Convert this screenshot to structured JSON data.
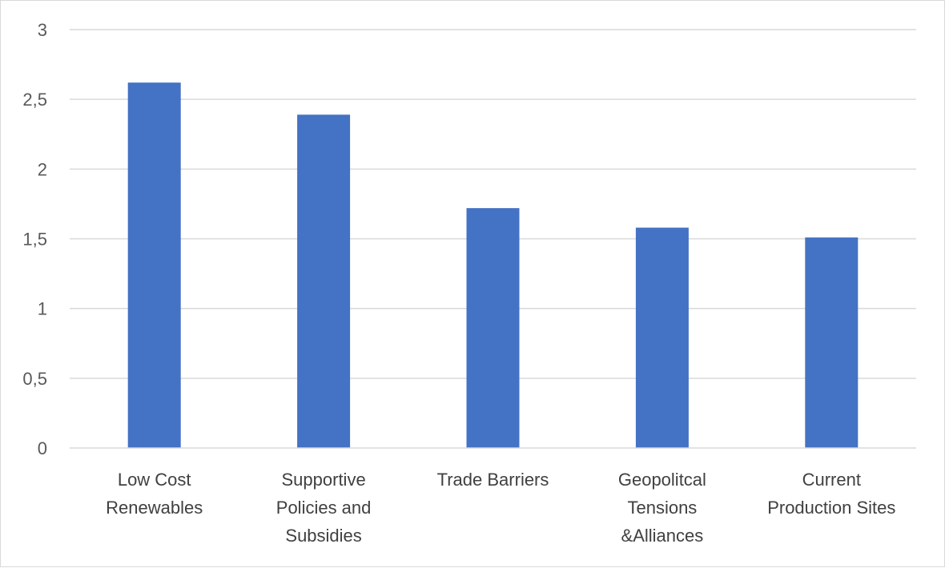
{
  "chart_data": {
    "type": "bar",
    "categories": [
      [
        "Low Cost",
        "Renewables"
      ],
      [
        "Supportive",
        "Policies and",
        "Subsidies"
      ],
      [
        "Trade Barriers"
      ],
      [
        "Geopolitcal",
        "Tensions",
        "&Alliances"
      ],
      [
        "Current",
        "Production Sites"
      ]
    ],
    "values": [
      2.62,
      2.39,
      1.72,
      1.58,
      1.51
    ],
    "yticks": [
      "0",
      "0,5",
      "1",
      "1,5",
      "2",
      "2,5",
      "3"
    ],
    "ylim": [
      0,
      3
    ],
    "grid": true,
    "bar_color": "#4472C4",
    "grid_color": "#D9D9D9",
    "title": "",
    "xlabel": "",
    "ylabel": ""
  }
}
